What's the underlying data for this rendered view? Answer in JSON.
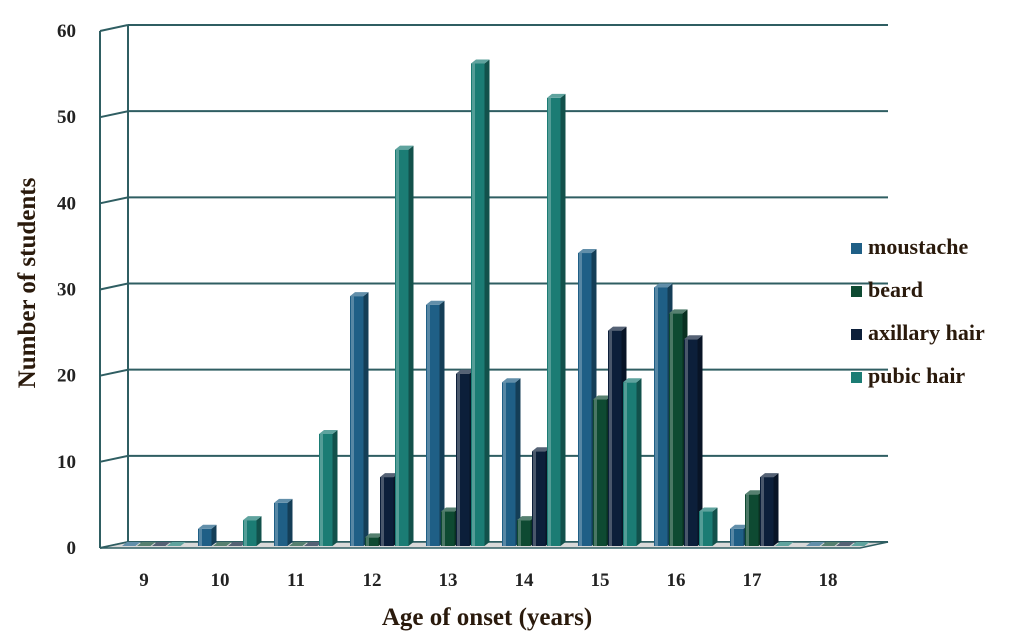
{
  "chart_data": {
    "type": "bar",
    "title": "",
    "xlabel": "Age of onset (years)",
    "ylabel": "Number of students",
    "ylim": [
      0,
      60
    ],
    "yticks": [
      0,
      10,
      20,
      30,
      40,
      50,
      60
    ],
    "grid": true,
    "legend_position": "right",
    "categories": [
      "9",
      "10",
      "11",
      "12",
      "13",
      "14",
      "15",
      "16",
      "17",
      "18"
    ],
    "series": [
      {
        "name": "moustache",
        "color": "#1f5f86",
        "values": [
          0,
          2,
          5,
          29,
          28,
          19,
          34,
          30,
          2,
          0
        ]
      },
      {
        "name": "beard",
        "color": "#0e4a32",
        "values": [
          0,
          0,
          0,
          1,
          4,
          3,
          17,
          27,
          6,
          0
        ]
      },
      {
        "name": "axillary hair",
        "color": "#0c1f3a",
        "values": [
          0,
          0,
          0,
          8,
          20,
          11,
          25,
          24,
          8,
          0
        ]
      },
      {
        "name": "pubic hair",
        "color": "#1b7c74",
        "values": [
          0,
          3,
          13,
          46,
          56,
          52,
          19,
          4,
          0,
          0
        ]
      }
    ]
  }
}
